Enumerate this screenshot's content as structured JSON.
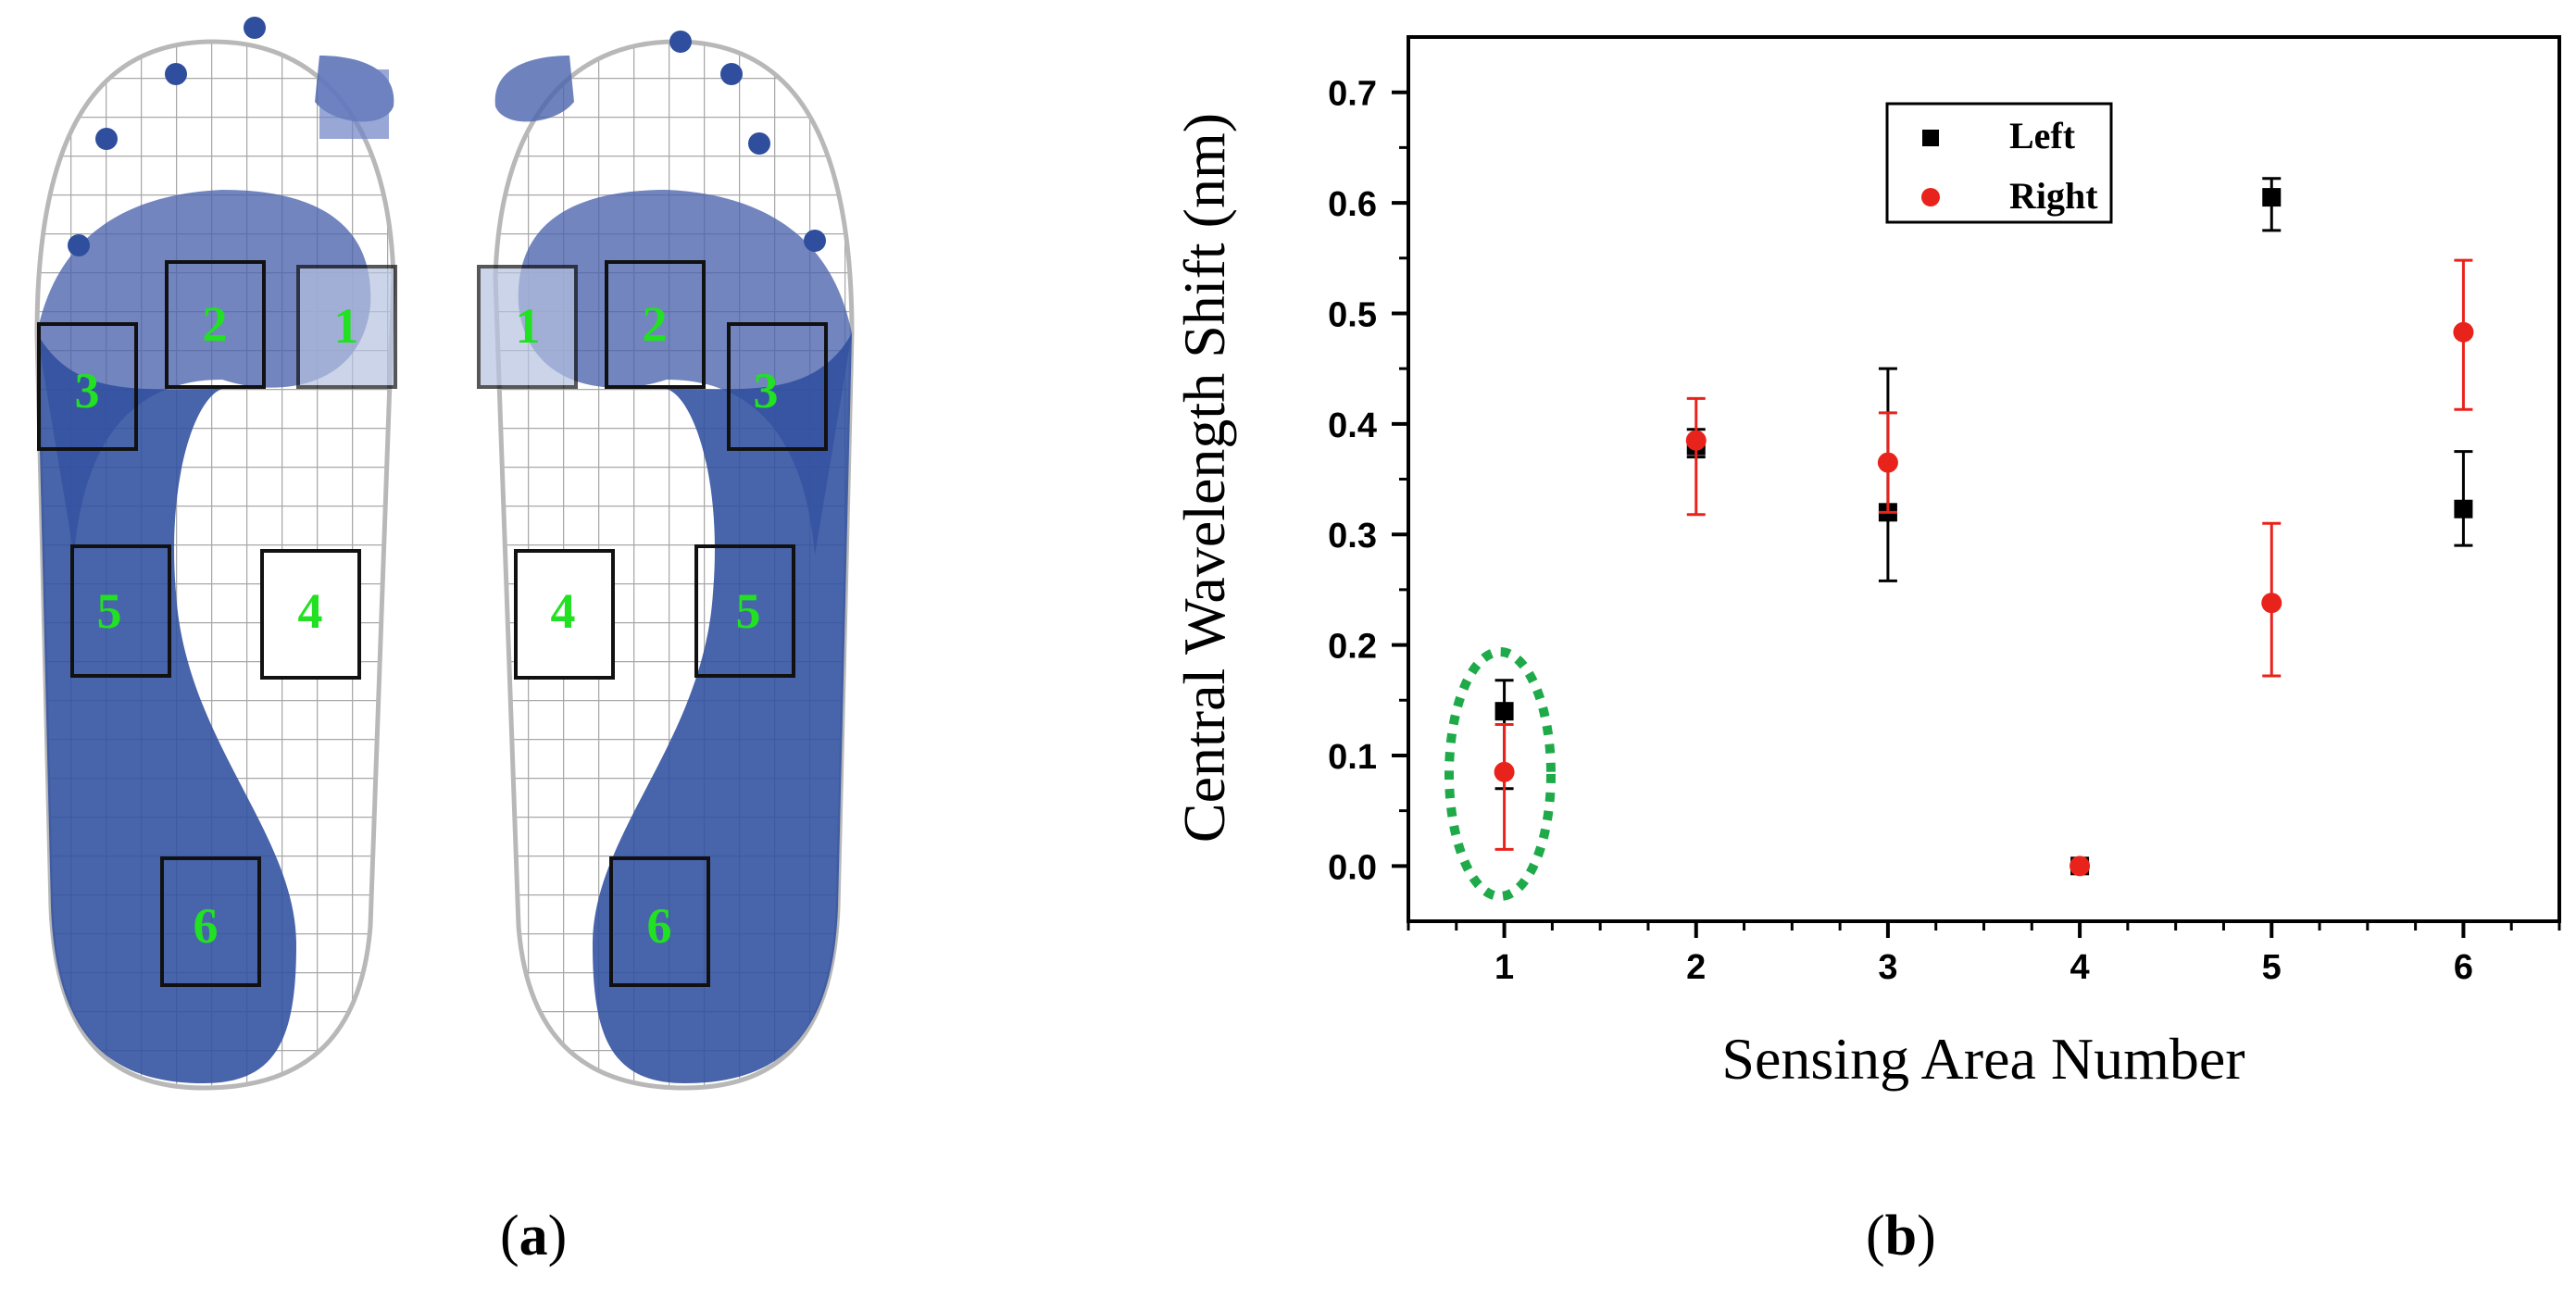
{
  "panels": {
    "a_label": "a",
    "b_label": "b"
  },
  "foot_map": {
    "left_foot_areas": [
      "1",
      "2",
      "3",
      "4",
      "5",
      "6"
    ],
    "right_foot_areas": [
      "1",
      "2",
      "3",
      "4",
      "5",
      "6"
    ],
    "pressure_color": "#2f4f9e",
    "area_label_color": "#22e022"
  },
  "chart_data": {
    "type": "scatter",
    "xlabel": "Sensing Area Number",
    "ylabel": "Central Wavelength Shift (nm)",
    "x": [
      1,
      2,
      3,
      4,
      5,
      6
    ],
    "xticks": [
      "1",
      "2",
      "3",
      "4",
      "5",
      "6"
    ],
    "xlim": [
      0.5,
      6.5
    ],
    "yticks": [
      "0.0",
      "0.1",
      "0.2",
      "0.3",
      "0.4",
      "0.5",
      "0.6",
      "0.7"
    ],
    "ylim": [
      -0.05,
      0.75
    ],
    "grid": false,
    "legend": "top-center",
    "series": [
      {
        "name": "Left",
        "marker": "square",
        "color": "#000000",
        "values": [
          0.14,
          0.38,
          0.32,
          0.0,
          0.605,
          0.323
        ],
        "err_low": [
          0.07,
          0.37,
          0.258,
          0.0,
          0.575,
          0.29
        ],
        "err_high": [
          0.168,
          0.395,
          0.45,
          0.0,
          0.622,
          0.375
        ]
      },
      {
        "name": "Right",
        "marker": "circle",
        "color": "#e8231b",
        "values": [
          0.085,
          0.385,
          0.365,
          0.0,
          0.238,
          0.483
        ],
        "err_low": [
          0.015,
          0.318,
          0.32,
          0.0,
          0.172,
          0.413
        ],
        "err_high": [
          0.128,
          0.423,
          0.41,
          0.0,
          0.31,
          0.548
        ]
      }
    ],
    "annotation": {
      "type": "dashed-ellipse",
      "x": 1,
      "color": "#1faa4a"
    }
  }
}
